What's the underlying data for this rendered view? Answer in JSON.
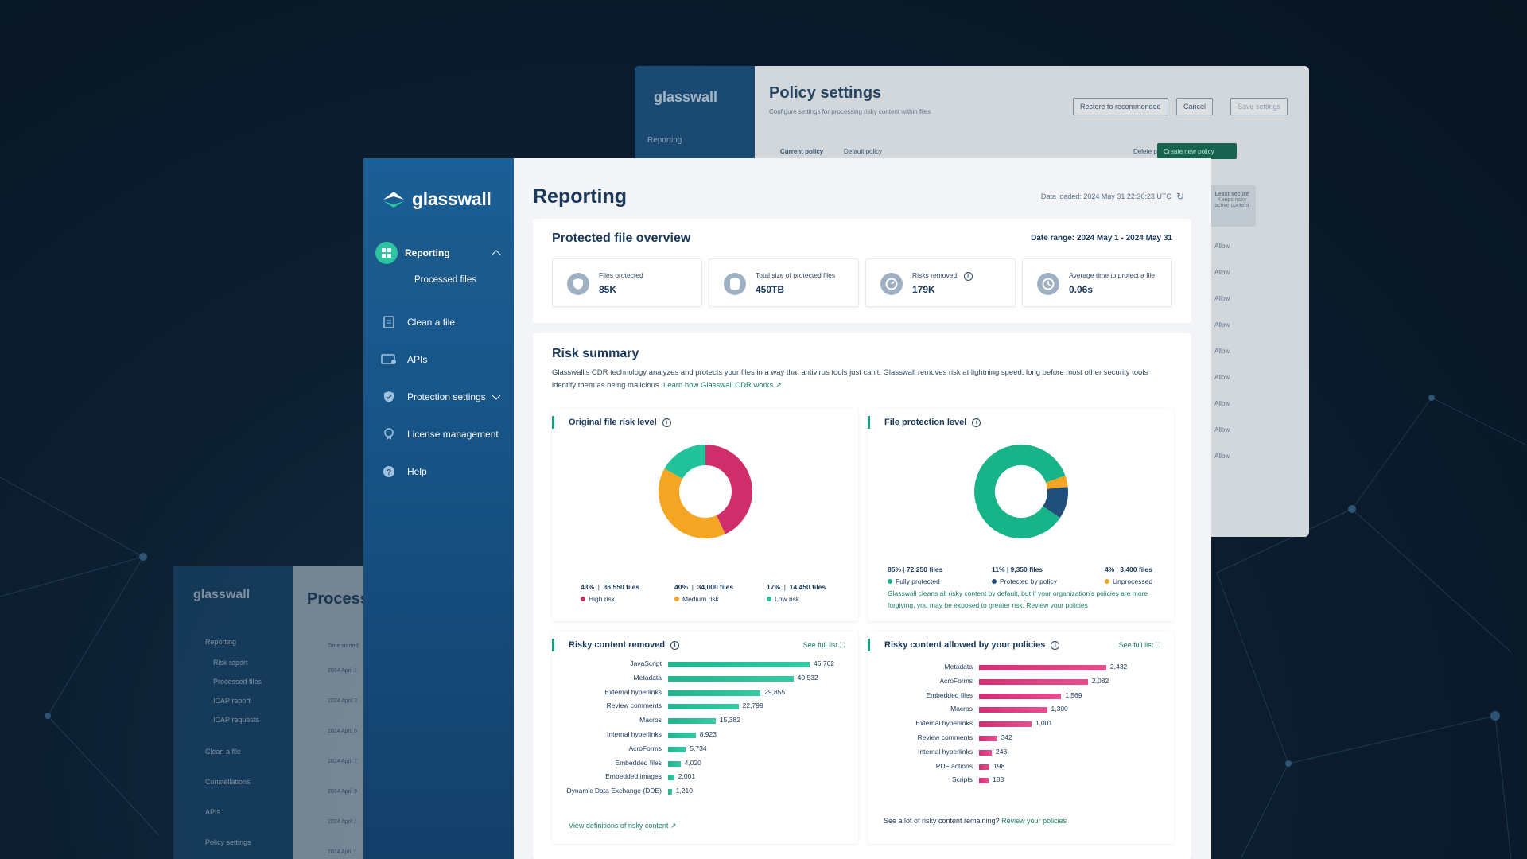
{
  "brand": "glasswall",
  "policy_window": {
    "title": "Policy settings",
    "subtitle": "Configure settings for processing risky content within files",
    "nav_reporting": "Reporting",
    "buttons": {
      "restore": "Restore to recommended",
      "cancel": "Cancel",
      "save": "Save settings"
    },
    "current_policy_label": "Current policy",
    "current_policy_value": "Default policy",
    "delete": "Delete policy",
    "create": "Create new policy",
    "col_title": "Least secure",
    "col_desc": "Keeps risky active content",
    "allow": "Allow"
  },
  "back_window": {
    "title": "Process",
    "nav": [
      "Reporting",
      "Risk report",
      "Processed files",
      "ICAP report",
      "ICAP requests",
      "Clean a file",
      "Constellations",
      "APIs",
      "Policy settings"
    ],
    "col": "Time started",
    "dates": [
      "2024 April 1",
      "2024 April 3",
      "2024 April 5",
      "2024 April 7",
      "2024 April 9",
      "2024 April 1",
      "2024 April 1"
    ]
  },
  "sidebar": {
    "reporting": "Reporting",
    "processed_files": "Processed files",
    "clean_file": "Clean a file",
    "apis": "APIs",
    "protection": "Protection settings",
    "license": "License management",
    "help": "Help"
  },
  "page": {
    "title": "Reporting",
    "loaded": "Data loaded: 2024 May 31 22:30:23 UTC"
  },
  "overview": {
    "title": "Protected file overview",
    "date_label": "Date range:",
    "date_value": "2024 May 1 - 2024 May 31",
    "stats": [
      {
        "label": "Files protected",
        "value": "85K"
      },
      {
        "label": "Total size of protected files",
        "value": "450TB"
      },
      {
        "label": "Risks removed",
        "value": "179K"
      },
      {
        "label": "Average time to protect a file",
        "value": "0.06s"
      }
    ]
  },
  "risk": {
    "title": "Risk summary",
    "desc": "Glasswall's CDR technology analyzes and protects your files in a way that antivirus tools just can't. Glasswall removes risk at lightning speed, long before most other security tools identify them as being malicious.",
    "link": "Learn how Glasswall CDR works",
    "original": {
      "title": "Original file risk level",
      "items": [
        {
          "pct": "43%",
          "files": "36,550 files",
          "label": "High risk",
          "color": "#cf2e6a",
          "value": 43
        },
        {
          "pct": "40%",
          "files": "34,000 files",
          "label": "Medium risk",
          "color": "#f5a524",
          "value": 40
        },
        {
          "pct": "17%",
          "files": "14,450 files",
          "label": "Low risk",
          "color": "#22c39a",
          "value": 17
        }
      ]
    },
    "protection": {
      "title": "File protection level",
      "items": [
        {
          "pct": "85%",
          "files": "72,250 files",
          "label": "Fully protected",
          "color": "#18b489",
          "value": 85
        },
        {
          "pct": "11%",
          "files": "9,350 files",
          "label": "Protected by policy",
          "color": "#1f4e7a",
          "value": 11
        },
        {
          "pct": "4%",
          "files": "3,400 files",
          "label": "Unprocessed",
          "color": "#f5a524",
          "value": 4
        }
      ],
      "note": "Glasswall cleans all risky content by default, but if your organization's policies are more forgiving, you may be exposed to greater risk.",
      "note_link": "Review your policies"
    },
    "removed": {
      "title": "Risky content removed",
      "full": "See full list",
      "footer": "View definitions of risky content",
      "bars": [
        {
          "name": "JavaScript",
          "value": 45762,
          "label": "45,762"
        },
        {
          "name": "Metadata",
          "value": 40532,
          "label": "40,532"
        },
        {
          "name": "External hyperlinks",
          "value": 29855,
          "label": "29,855"
        },
        {
          "name": "Review comments",
          "value": 22799,
          "label": "22,799"
        },
        {
          "name": "Macros",
          "value": 15382,
          "label": "15,382"
        },
        {
          "name": "Internal hyperlinks",
          "value": 8923,
          "label": "8,923"
        },
        {
          "name": "AcroForms",
          "value": 5734,
          "label": "5,734"
        },
        {
          "name": "Embedded files",
          "value": 4020,
          "label": "4,020"
        },
        {
          "name": "Embedded images",
          "value": 2001,
          "label": "2,001"
        },
        {
          "name": "Dynamic Data Exchange (DDE)",
          "value": 1210,
          "label": "1,210"
        }
      ]
    },
    "allowed": {
      "title": "Risky content allowed by your policies",
      "full": "See full list",
      "footer_q": "See a lot of risky content remaining?",
      "footer_link": "Review your policies",
      "bars": [
        {
          "name": "Metadata",
          "value": 2432,
          "label": "2,432"
        },
        {
          "name": "AcroForms",
          "value": 2082,
          "label": "2,082"
        },
        {
          "name": "Embedded files",
          "value": 1569,
          "label": "1,569"
        },
        {
          "name": "Macros",
          "value": 1300,
          "label": "1,300"
        },
        {
          "name": "External hyperlinks",
          "value": 1001,
          "label": "1,001"
        },
        {
          "name": "Review comments",
          "value": 342,
          "label": "342"
        },
        {
          "name": "Internal hyperlinks",
          "value": 243,
          "label": "243"
        },
        {
          "name": "PDF actions",
          "value": 198,
          "label": "198"
        },
        {
          "name": "Scripts",
          "value": 183,
          "label": "183"
        }
      ]
    }
  },
  "colors": {
    "teal": "#1ab08d",
    "pink": "#d8327a",
    "navy": "#19385a"
  }
}
